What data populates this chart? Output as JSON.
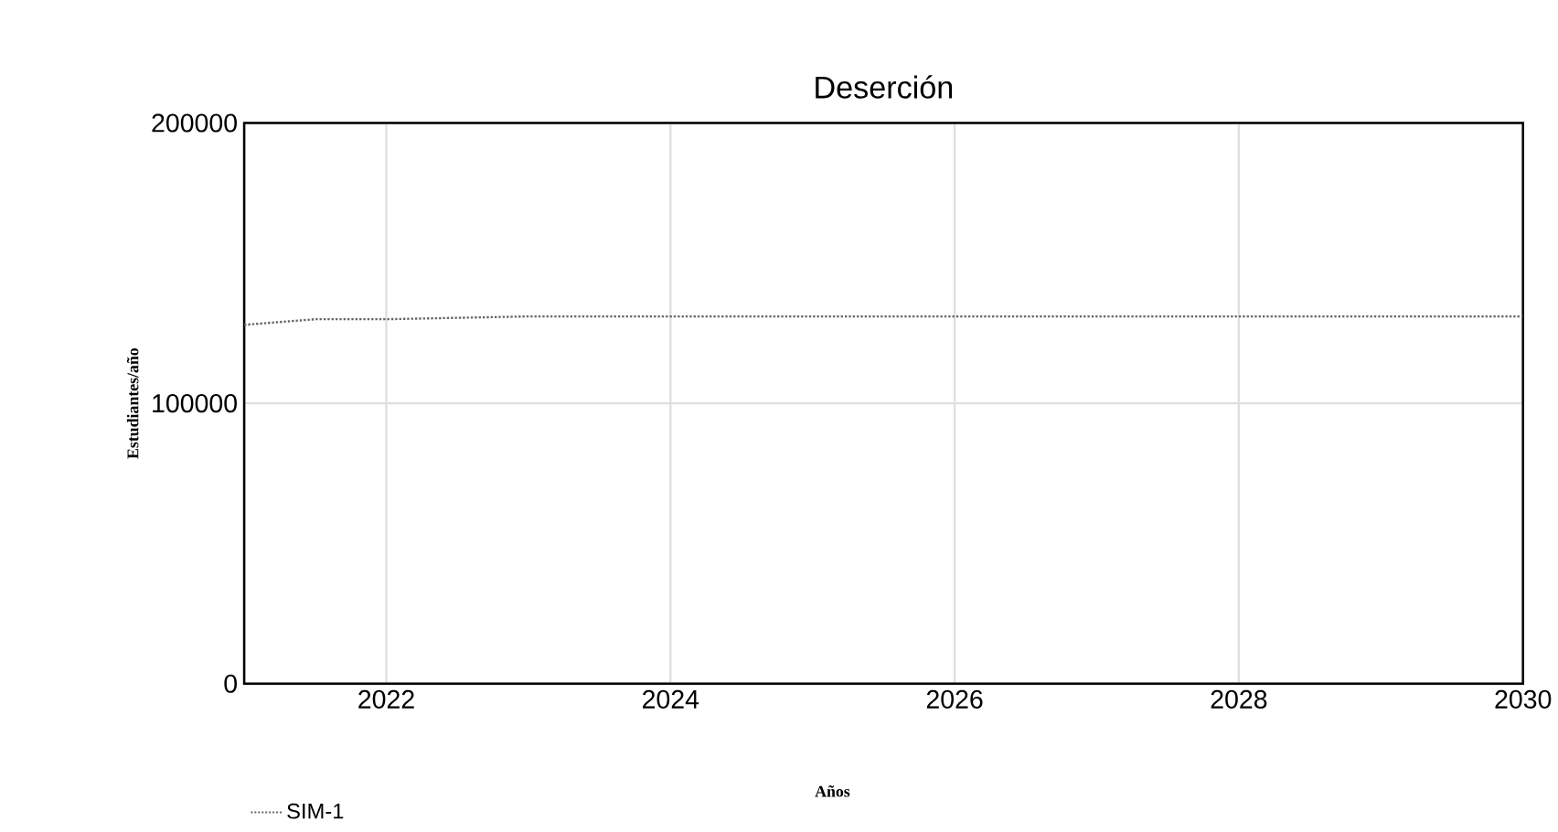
{
  "chart_data": {
    "type": "line",
    "title": "Deserción",
    "xlabel": "Años",
    "ylabel": "Estudiantes/año",
    "x": [
      2021,
      2021.5,
      2022,
      2023,
      2024,
      2025,
      2026,
      2027,
      2028,
      2029,
      2030
    ],
    "series": [
      {
        "name": "SIM-1",
        "color": "#666666",
        "line_style": "dotted",
        "values": [
          128000,
          130000,
          130000,
          131000,
          131000,
          131000,
          131000,
          131000,
          131000,
          131000,
          131000
        ]
      }
    ],
    "xlim": [
      2021,
      2030
    ],
    "xticks": [
      2022,
      2024,
      2026,
      2028,
      2030
    ],
    "ylim": [
      0,
      200000
    ],
    "yticks": [
      0,
      100000,
      200000
    ],
    "grid": true,
    "legend": "bottom left",
    "marker": "none"
  }
}
